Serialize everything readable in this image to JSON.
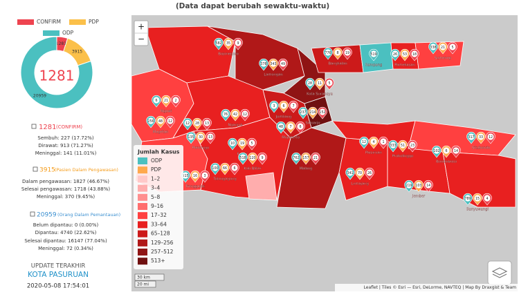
{
  "header": {
    "note": "(Data dapat berubah sewaktu-waktu)"
  },
  "chart_data": {
    "type": "pie",
    "donut": true,
    "categories": [
      "CONFIRM",
      "PDP",
      "ODP"
    ],
    "values": [
      1281,
      3915,
      20959
    ],
    "colors": [
      "#ee4450",
      "#fbc04a",
      "#4bc0c0"
    ]
  },
  "confirm": {
    "label": "(CONFIRM)",
    "lines": [
      "Sembuh: 227 (17.72%)",
      "Dirawat: 913 (71.27%)",
      "Meninggal: 141 (11.01%)"
    ]
  },
  "pdp": {
    "label": "(Pasien Dalam Pengawasan)",
    "lines": [
      "Dalam pengawasan: 1827 (46.67%)",
      "Selesai pengawasan: 1718 (43.88%)",
      "Meninggal: 370 (9.45%)"
    ]
  },
  "odp": {
    "label": "(Orang Dalam Pemantauan)",
    "lines": [
      "Belum dipantau: 0 (0.00%)",
      "Dipantau: 4740 (22.62%)",
      "Selesai dipantau: 16147 (77.04%)",
      "Meninggal: 72 (0.34%)"
    ]
  },
  "update": {
    "title": "UPDATE TERAKHIR",
    "location": "KOTA PASURUAN",
    "time": "2020-05-08 17:54:01"
  },
  "map": {
    "zoom_in": "+",
    "zoom_out": "−",
    "pin_colors": [
      "#4bc0c0",
      "#ffa94d",
      "#ee4450"
    ],
    "legend": {
      "title": "Jumlah Kasus",
      "items": [
        {
          "label": "ODP",
          "color": "#4bc0c0"
        },
        {
          "label": "PDP",
          "color": "#ffa94d"
        },
        {
          "label": "1–2",
          "color": "#ffc9c9"
        },
        {
          "label": "3–4",
          "color": "#ffadad"
        },
        {
          "label": "5–8",
          "color": "#ff8f8f"
        },
        {
          "label": "9–16",
          "color": "#ff6e6e"
        },
        {
          "label": "17–32",
          "color": "#ff4040"
        },
        {
          "label": "33–64",
          "color": "#e82020"
        },
        {
          "label": "65–128",
          "color": "#cc1a1a"
        },
        {
          "label": "129–256",
          "color": "#b01818"
        },
        {
          "label": "257–512",
          "color": "#8f1414"
        },
        {
          "label": "513+",
          "color": "#701010"
        }
      ]
    },
    "regions": [
      {
        "name": "Ngawi",
        "counts": [
          6,
          21,
          2
        ]
      },
      {
        "name": "Bojonegoro",
        "counts": [
          582,
          35,
          9
        ]
      },
      {
        "name": "Lamongan",
        "counts": [
          378,
          343,
          49
        ]
      },
      {
        "name": "Bangkalan",
        "counts": [
          776,
          8,
          19
        ]
      },
      {
        "name": "Sampang",
        "counts": [
          519
        ]
      },
      {
        "name": "Pamekasan",
        "counts": [
          26,
          53,
          18
        ]
      },
      {
        "name": "Sumenep",
        "counts": [
          338,
          21,
          5
        ]
      },
      {
        "name": "Sidoarjo",
        "counts": [
          237,
          214,
          152
        ]
      },
      {
        "name": "Nganjuk",
        "counts": [
          76,
          42,
          12
        ]
      },
      {
        "name": "Madiun",
        "counts": [
          12,
          28,
          13
        ]
      },
      {
        "name": "Magetan",
        "counts": [
          256,
          48,
          12
        ]
      },
      {
        "name": "Jombang",
        "counts": [
          3,
          6,
          7
        ]
      },
      {
        "name": "Mojokerto",
        "counts": [
          48,
          7,
          6
        ]
      },
      {
        "name": "Kediri",
        "counts": [
          10,
          19,
          5
        ]
      },
      {
        "name": "Ponorogo",
        "counts": [
          135,
          30,
          13
        ]
      },
      {
        "name": "Trenggalek",
        "counts": [
          515,
          16,
          3
        ]
      },
      {
        "name": "Tulungagung",
        "counts": [
          100,
          66,
          6
        ]
      },
      {
        "name": "Kab Blitar",
        "counts": [
          518,
          120,
          9
        ]
      },
      {
        "name": "Malang",
        "counts": [
          762,
          157,
          21
        ]
      },
      {
        "name": "Pasuruan",
        "counts": [
          12,
          4,
          1
        ]
      },
      {
        "name": "Probolinggo",
        "counts": [
          333,
          51,
          23
        ]
      },
      {
        "name": "Lumajang",
        "counts": [
          341,
          70,
          26
        ]
      },
      {
        "name": "Jember",
        "counts": [
          219,
          103,
          14
        ]
      },
      {
        "name": "Bondowoso",
        "counts": [
          102,
          6,
          14
        ]
      },
      {
        "name": "Situbondo",
        "counts": [
          317,
          33,
          12
        ]
      },
      {
        "name": "Banyuwangi",
        "counts": [
          789,
          15,
          4
        ]
      },
      {
        "name": "Kota Surabaya",
        "counts": [
          28,
          11,
          5
        ]
      }
    ],
    "scale": [
      "30 km",
      "20 mi"
    ],
    "attribution": "Leaflet | Tiles © Esri — Esri, DeLorme, NAVTEQ | Map By Draxgist & Team"
  }
}
